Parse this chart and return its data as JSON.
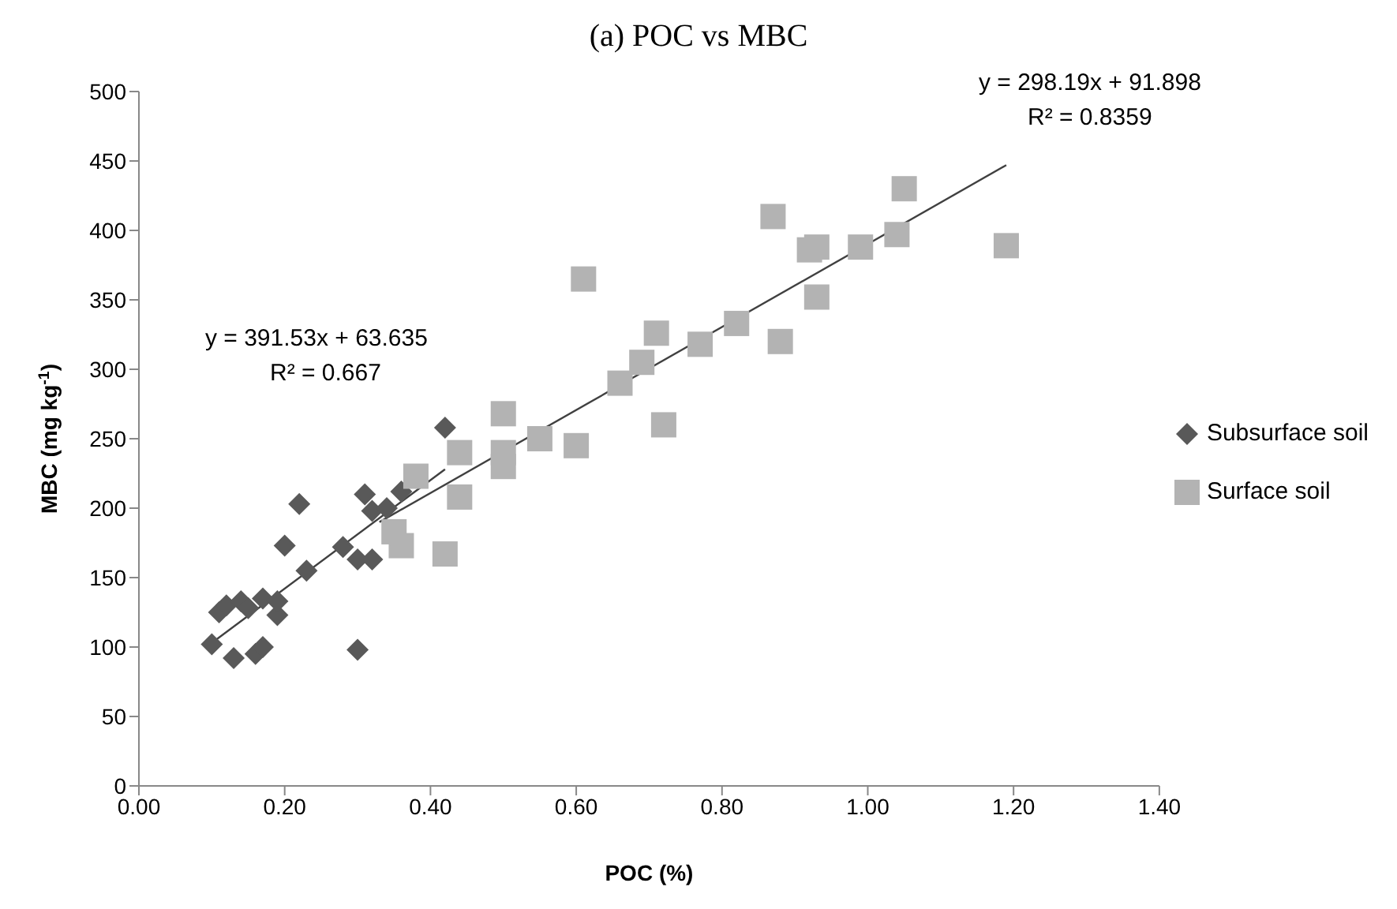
{
  "chart_data": {
    "type": "scatter",
    "title": "(a) POC vs MBC",
    "xlabel": "POC (%)",
    "ylabel": "MBC (mg kg$^{-1}$)",
    "xlim": [
      0,
      1.4
    ],
    "xticks": [
      {
        "value": 0,
        "label": "0.00"
      },
      {
        "value": 0.2,
        "label": "0.20"
      },
      {
        "value": 0.4,
        "label": "0.40"
      },
      {
        "value": 0.6,
        "label": "0.60"
      },
      {
        "value": 0.8,
        "label": "0.80"
      },
      {
        "value": 1.0,
        "label": "1.00"
      },
      {
        "value": 1.2,
        "label": "1.20"
      },
      {
        "value": 1.4,
        "label": "1.40"
      }
    ],
    "ylim": [
      0,
      500
    ],
    "yticks": [
      0,
      50,
      100,
      150,
      200,
      250,
      300,
      350,
      400,
      450,
      500
    ],
    "legend": "right",
    "grid": false,
    "annotations": [
      "y = 298.19x + 91.898",
      "R² = 0.8359",
      "y = 391.53x + 63.635",
      "R² = 0.667"
    ],
    "series": [
      {
        "name": "Subsurface soil",
        "type": "scatter",
        "marker": "diamond",
        "color": "#595959",
        "x": [
          0.1,
          0.11,
          0.12,
          0.13,
          0.14,
          0.15,
          0.16,
          0.17,
          0.17,
          0.19,
          0.19,
          0.2,
          0.22,
          0.23,
          0.28,
          0.3,
          0.3,
          0.31,
          0.32,
          0.32,
          0.34,
          0.36,
          0.42
        ],
        "values": [
          102,
          125,
          130,
          92,
          133,
          128,
          95,
          100,
          135,
          123,
          133,
          173,
          203,
          155,
          172,
          163,
          98,
          210,
          163,
          198,
          200,
          212,
          258
        ]
      },
      {
        "name": "Surface soil",
        "type": "scatter",
        "marker": "square",
        "color": "#b3b3b3",
        "x": [
          0.35,
          0.36,
          0.38,
          0.42,
          0.44,
          0.44,
          0.5,
          0.5,
          0.5,
          0.55,
          0.6,
          0.61,
          0.66,
          0.69,
          0.71,
          0.72,
          0.77,
          0.82,
          0.87,
          0.88,
          0.92,
          0.93,
          0.93,
          0.99,
          1.04,
          1.05,
          1.19
        ],
        "values": [
          183,
          173,
          223,
          167,
          240,
          208,
          268,
          240,
          230,
          250,
          245,
          365,
          290,
          305,
          326,
          260,
          318,
          333,
          410,
          320,
          386,
          352,
          388,
          388,
          397,
          430,
          389
        ]
      },
      {
        "type": "line",
        "marker": "none",
        "line_style": "solid",
        "color": "#404040",
        "x": [
          0.1,
          0.42
        ],
        "values": [
          103,
          228
        ]
      },
      {
        "type": "line",
        "marker": "none",
        "line_style": "solid",
        "color": "#404040",
        "x": [
          0.33,
          1.19
        ],
        "values": [
          190,
          447
        ]
      }
    ]
  }
}
